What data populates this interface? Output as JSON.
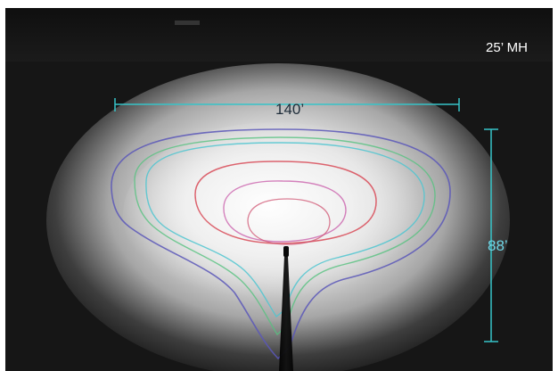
{
  "labels": {
    "mounting_height": "25’ MH",
    "width_dimension": "140’",
    "depth_dimension": "88’"
  },
  "colors": {
    "background_dark": "#161616",
    "light_core": "#f5f5f5",
    "dimension_line": "#36c3c8",
    "depth_text": "#6fd6e6",
    "width_text": "#1f2d3a",
    "contour_outer_blue": "#5b57b8",
    "contour_green": "#56c27f",
    "contour_cyan": "#4fc6d0",
    "contour_red": "#d84a57",
    "contour_magenta": "#c85aa8"
  },
  "contours": [
    {
      "name": "outer-blue",
      "color": "#5b57b8"
    },
    {
      "name": "green",
      "color": "#56c27f"
    },
    {
      "name": "cyan",
      "color": "#4fc6d0"
    },
    {
      "name": "red-outer",
      "color": "#d84a57"
    },
    {
      "name": "magenta",
      "color": "#c85aa8"
    },
    {
      "name": "red-inner",
      "color": "#cf4f6d"
    }
  ]
}
